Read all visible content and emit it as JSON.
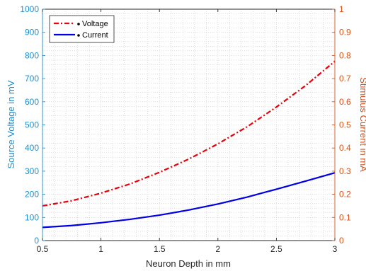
{
  "chart_data": {
    "type": "line",
    "xlabel": "Neuron Depth in mm",
    "ylabel_left": "Source Voltage in mV",
    "ylabel_right": "Stimulus Current in mA",
    "xlim": [
      0.5,
      3
    ],
    "ylim_left": [
      0,
      1000
    ],
    "ylim_right": [
      0,
      1
    ],
    "x_ticks": [
      0.5,
      1,
      1.5,
      2,
      2.5,
      3
    ],
    "x_tick_labels": [
      "0.5",
      "1",
      "1.5",
      "2",
      "2.5",
      "3"
    ],
    "y_left_ticks": [
      0,
      100,
      200,
      300,
      400,
      500,
      600,
      700,
      800,
      900,
      1000
    ],
    "y_left_tick_labels": [
      "0",
      "100",
      "200",
      "300",
      "400",
      "500",
      "600",
      "700",
      "800",
      "900",
      "1000"
    ],
    "y_right_ticks": [
      0,
      0.1,
      0.2,
      0.3,
      0.4,
      0.5,
      0.6,
      0.7,
      0.8,
      0.9,
      1
    ],
    "y_right_tick_labels": [
      "0",
      "0.1",
      "0.2",
      "0.3",
      "0.4",
      "0.5",
      "0.6",
      "0.7",
      "0.8",
      "0.9",
      "1"
    ],
    "grid": "minor-dotted",
    "legend_position": "top-left",
    "x": [
      0.5,
      0.75,
      1.0,
      1.25,
      1.5,
      1.75,
      2.0,
      2.25,
      2.5,
      2.75,
      3.0
    ],
    "series": [
      {
        "name": "Voltage",
        "axis": "left",
        "color": "#e8000b",
        "style": "dash-dot",
        "values": [
          150,
          172,
          205,
          245,
          295,
          352,
          418,
          492,
          577,
          670,
          775
        ]
      },
      {
        "name": "Current",
        "axis": "left",
        "color": "#0000e6",
        "style": "solid",
        "values": [
          57,
          65,
          77,
          92,
          110,
          132,
          158,
          188,
          222,
          257,
          293
        ]
      }
    ]
  },
  "colors": {
    "left_axis": "#1a8fd1",
    "right_axis": "#d95319",
    "grid": "#c8c8c8"
  }
}
